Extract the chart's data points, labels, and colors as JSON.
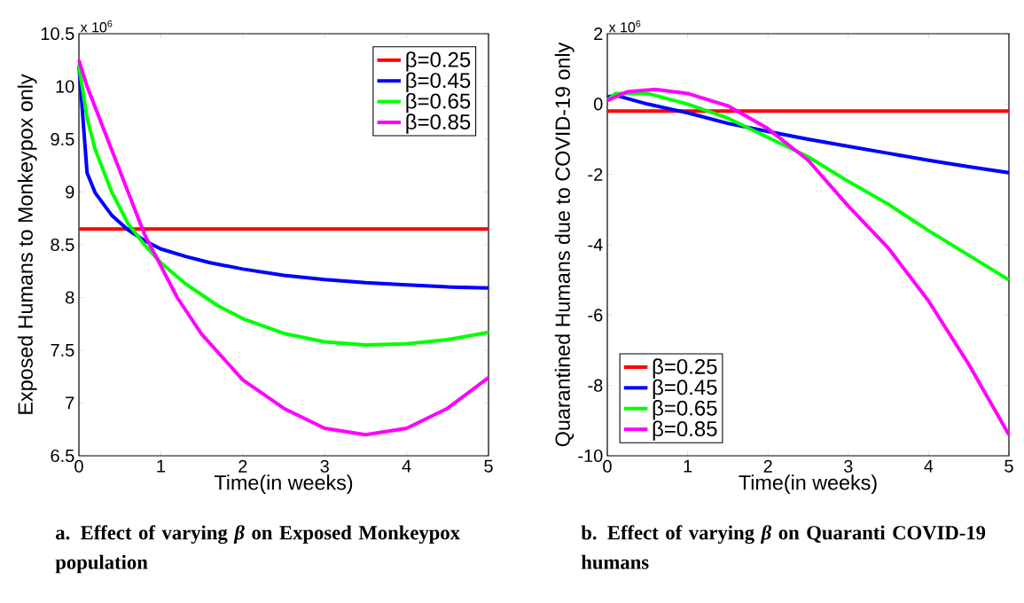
{
  "chart_data": [
    {
      "type": "line",
      "title": "a.  Effect of varying *β* on Exposed Monkeypox population",
      "xlabel": "Time(in weeks)",
      "ylabel": "Exposed Humans to Monkeypox only",
      "annotations": [
        "x 10$^{6}$"
      ],
      "xlim": [
        0,
        5
      ],
      "ylim": [
        6.5,
        10.5
      ],
      "xticks": [
        0,
        1,
        2,
        3,
        4,
        5
      ],
      "yticks": [
        6.5,
        7,
        7.5,
        8,
        8.5,
        9,
        9.5,
        10,
        10.5
      ],
      "legend": "top right",
      "series": [
        {
          "name": "β=0.25",
          "color": "#ff0000",
          "x": [
            0,
            5
          ],
          "values": [
            8.65,
            8.65
          ]
        },
        {
          "name": "β=0.45",
          "color": "#0000ff",
          "x": [
            0,
            0.1,
            0.2,
            0.4,
            0.6,
            0.8,
            1,
            1.3,
            1.6,
            2,
            2.5,
            3,
            3.5,
            4,
            4.5,
            5
          ],
          "values": [
            10.2,
            9.18,
            8.99,
            8.78,
            8.64,
            8.54,
            8.46,
            8.39,
            8.33,
            8.27,
            8.21,
            8.17,
            8.14,
            8.12,
            8.1,
            8.09
          ]
        },
        {
          "name": "β=0.65",
          "color": "#00ff00",
          "x": [
            0,
            0.1,
            0.2,
            0.4,
            0.6,
            0.8,
            1,
            1.3,
            1.7,
            2,
            2.5,
            3,
            3.5,
            4,
            4.5,
            5
          ],
          "values": [
            10.2,
            9.7,
            9.4,
            9.0,
            8.7,
            8.5,
            8.33,
            8.13,
            7.92,
            7.8,
            7.66,
            7.58,
            7.55,
            7.56,
            7.6,
            7.67
          ]
        },
        {
          "name": "β=0.85",
          "color": "#ff00ff",
          "x": [
            0,
            0.1,
            0.2,
            0.4,
            0.6,
            0.8,
            1,
            1.2,
            1.5,
            2,
            2.5,
            3,
            3.5,
            4,
            4.5,
            5
          ],
          "values": [
            10.25,
            10.0,
            9.8,
            9.4,
            9.0,
            8.6,
            8.3,
            8.0,
            7.65,
            7.22,
            6.95,
            6.76,
            6.7,
            6.76,
            6.95,
            7.24
          ]
        }
      ]
    },
    {
      "type": "line",
      "title": "b. Effect of varying *β* on Quaranti COVID-19 humans",
      "xlabel": "Time(in weeks)",
      "ylabel": "Quarantined Humans due to COVID-19 only",
      "annotations": [
        "x 10$^{6}$"
      ],
      "xlim": [
        0,
        5
      ],
      "ylim": [
        -10,
        2
      ],
      "xticks": [
        0,
        1,
        2,
        3,
        4,
        5
      ],
      "yticks": [
        -10,
        -8,
        -6,
        -4,
        -2,
        0,
        2
      ],
      "legend": "bottom left",
      "series": [
        {
          "name": "β=0.25",
          "color": "#ff0000",
          "x": [
            0,
            5
          ],
          "values": [
            -0.2,
            -0.2
          ]
        },
        {
          "name": "β=0.45",
          "color": "#0000ff",
          "x": [
            0,
            0.1,
            0.5,
            1,
            1.5,
            2,
            2.5,
            3,
            3.5,
            4,
            4.5,
            5
          ],
          "values": [
            0.2,
            0.25,
            0.0,
            -0.25,
            -0.55,
            -0.78,
            -1.0,
            -1.2,
            -1.4,
            -1.6,
            -1.78,
            -1.95
          ]
        },
        {
          "name": "β=0.65",
          "color": "#00ff00",
          "x": [
            0,
            0.1,
            0.5,
            1,
            1.5,
            2,
            2.5,
            3,
            3.5,
            4,
            4.5,
            5
          ],
          "values": [
            0.1,
            0.3,
            0.3,
            0.0,
            -0.4,
            -0.95,
            -1.5,
            -2.2,
            -2.85,
            -3.6,
            -4.3,
            -5.0
          ]
        },
        {
          "name": "β=0.85",
          "color": "#ff00ff",
          "x": [
            0,
            0.25,
            0.6,
            1,
            1.5,
            2,
            2.5,
            3,
            3.5,
            4,
            4.5,
            5
          ],
          "values": [
            0.1,
            0.35,
            0.42,
            0.3,
            -0.05,
            -0.7,
            -1.6,
            -2.9,
            -4.1,
            -5.6,
            -7.4,
            -9.4
          ]
        }
      ]
    }
  ]
}
